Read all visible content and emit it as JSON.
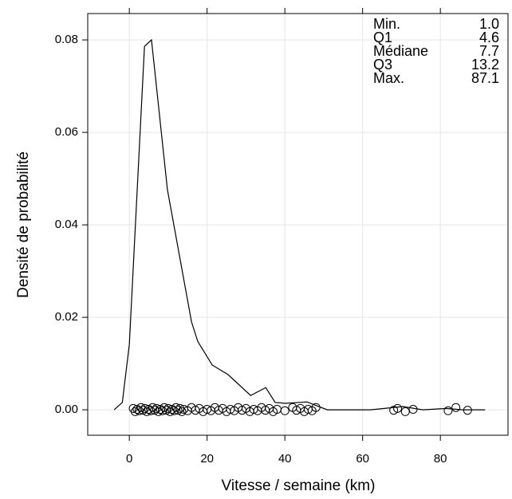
{
  "chart_data": {
    "type": "line",
    "xlabel": "Vitesse / semaine (km)",
    "ylabel": "Densité de probabilité",
    "xlim": [
      -10.7,
      97.4
    ],
    "ylim": [
      -0.0055,
      0.0857
    ],
    "xticks": [
      0,
      20,
      40,
      60,
      80
    ],
    "yticks": [
      {
        "value": 0,
        "label": "0.00"
      },
      {
        "value": 0.02,
        "label": "0.02"
      },
      {
        "value": 0.04,
        "label": "0.04"
      },
      {
        "value": 0.06,
        "label": "0.06"
      },
      {
        "value": 0.08,
        "label": "0.08"
      }
    ],
    "grid": true,
    "color": "#000000",
    "x": [
      -3.9,
      -1.8,
      0,
      3.9,
      5.7,
      9.8,
      16.0,
      17.6,
      21.3,
      25.4,
      31.2,
      35.1,
      37.5,
      40,
      45.7,
      50.9,
      62,
      70.4,
      75.5,
      81.6,
      85.7,
      91.5
    ],
    "values": [
      0,
      0.0016,
      0.0141,
      0.0786,
      0.08,
      0.0476,
      0.019,
      0.0148,
      0.0097,
      0.0076,
      0.0031,
      0.0048,
      0.0016,
      0.0014,
      0.0017,
      0,
      0,
      0.0007,
      0,
      0.0003,
      0,
      0
    ],
    "points": {
      "x": [
        1,
        1.5,
        2,
        2.5,
        3,
        3.5,
        4,
        4.5,
        5,
        5.5,
        6,
        6.5,
        7,
        7.5,
        8,
        8.5,
        9,
        9.5,
        10,
        10.5,
        11,
        11.5,
        12,
        12.5,
        13,
        13.5,
        14,
        15,
        16,
        17,
        18,
        19,
        20,
        21,
        22,
        23,
        24,
        25,
        26,
        27,
        28,
        29,
        30,
        31,
        32,
        33,
        34,
        35,
        36,
        37,
        38,
        40,
        42,
        43,
        44,
        45,
        46,
        47,
        48,
        68,
        69,
        71,
        73,
        82,
        84,
        87
      ],
      "y": [
        0.0003,
        -0.0004,
        0.0001,
        -0.0002,
        0.0005,
        -0.0001,
        0.0003,
        -0.0004,
        0.0001,
        -0.0002,
        0.0005,
        -0.0001,
        0.0003,
        -0.0004,
        0.0001,
        -0.0002,
        0.0005,
        -0.0001,
        0.0003,
        -0.0004,
        0.0001,
        -0.0002,
        0.0005,
        -0.0001,
        0.0003,
        -0.0004,
        0.0001,
        -0.0002,
        0.0005,
        -0.0001,
        0.0003,
        -0.0004,
        0.0001,
        -0.0002,
        0.0005,
        -0.0001,
        0.0003,
        -0.0004,
        0.0001,
        -0.0002,
        0.0005,
        -0.0001,
        0.0003,
        -0.0004,
        0.0001,
        -0.0002,
        0.0005,
        -0.0001,
        0.0003,
        -0.0004,
        0.0001,
        -0.0002,
        0.0005,
        -0.0001,
        0.0003,
        -0.0004,
        0.0001,
        -0.0002,
        0.0005,
        -0.0001,
        0.0003,
        -0.0004,
        0.0001,
        -0.0002,
        0.0005,
        -0.0001
      ]
    },
    "summary": [
      {
        "label": "Min.",
        "value": "1.0"
      },
      {
        "label": "Q1",
        "value": "4.6"
      },
      {
        "label": "Médiane",
        "value": "7.7"
      },
      {
        "label": "Q3",
        "value": "13.2"
      },
      {
        "label": "Max.",
        "value": "87.1"
      }
    ]
  }
}
